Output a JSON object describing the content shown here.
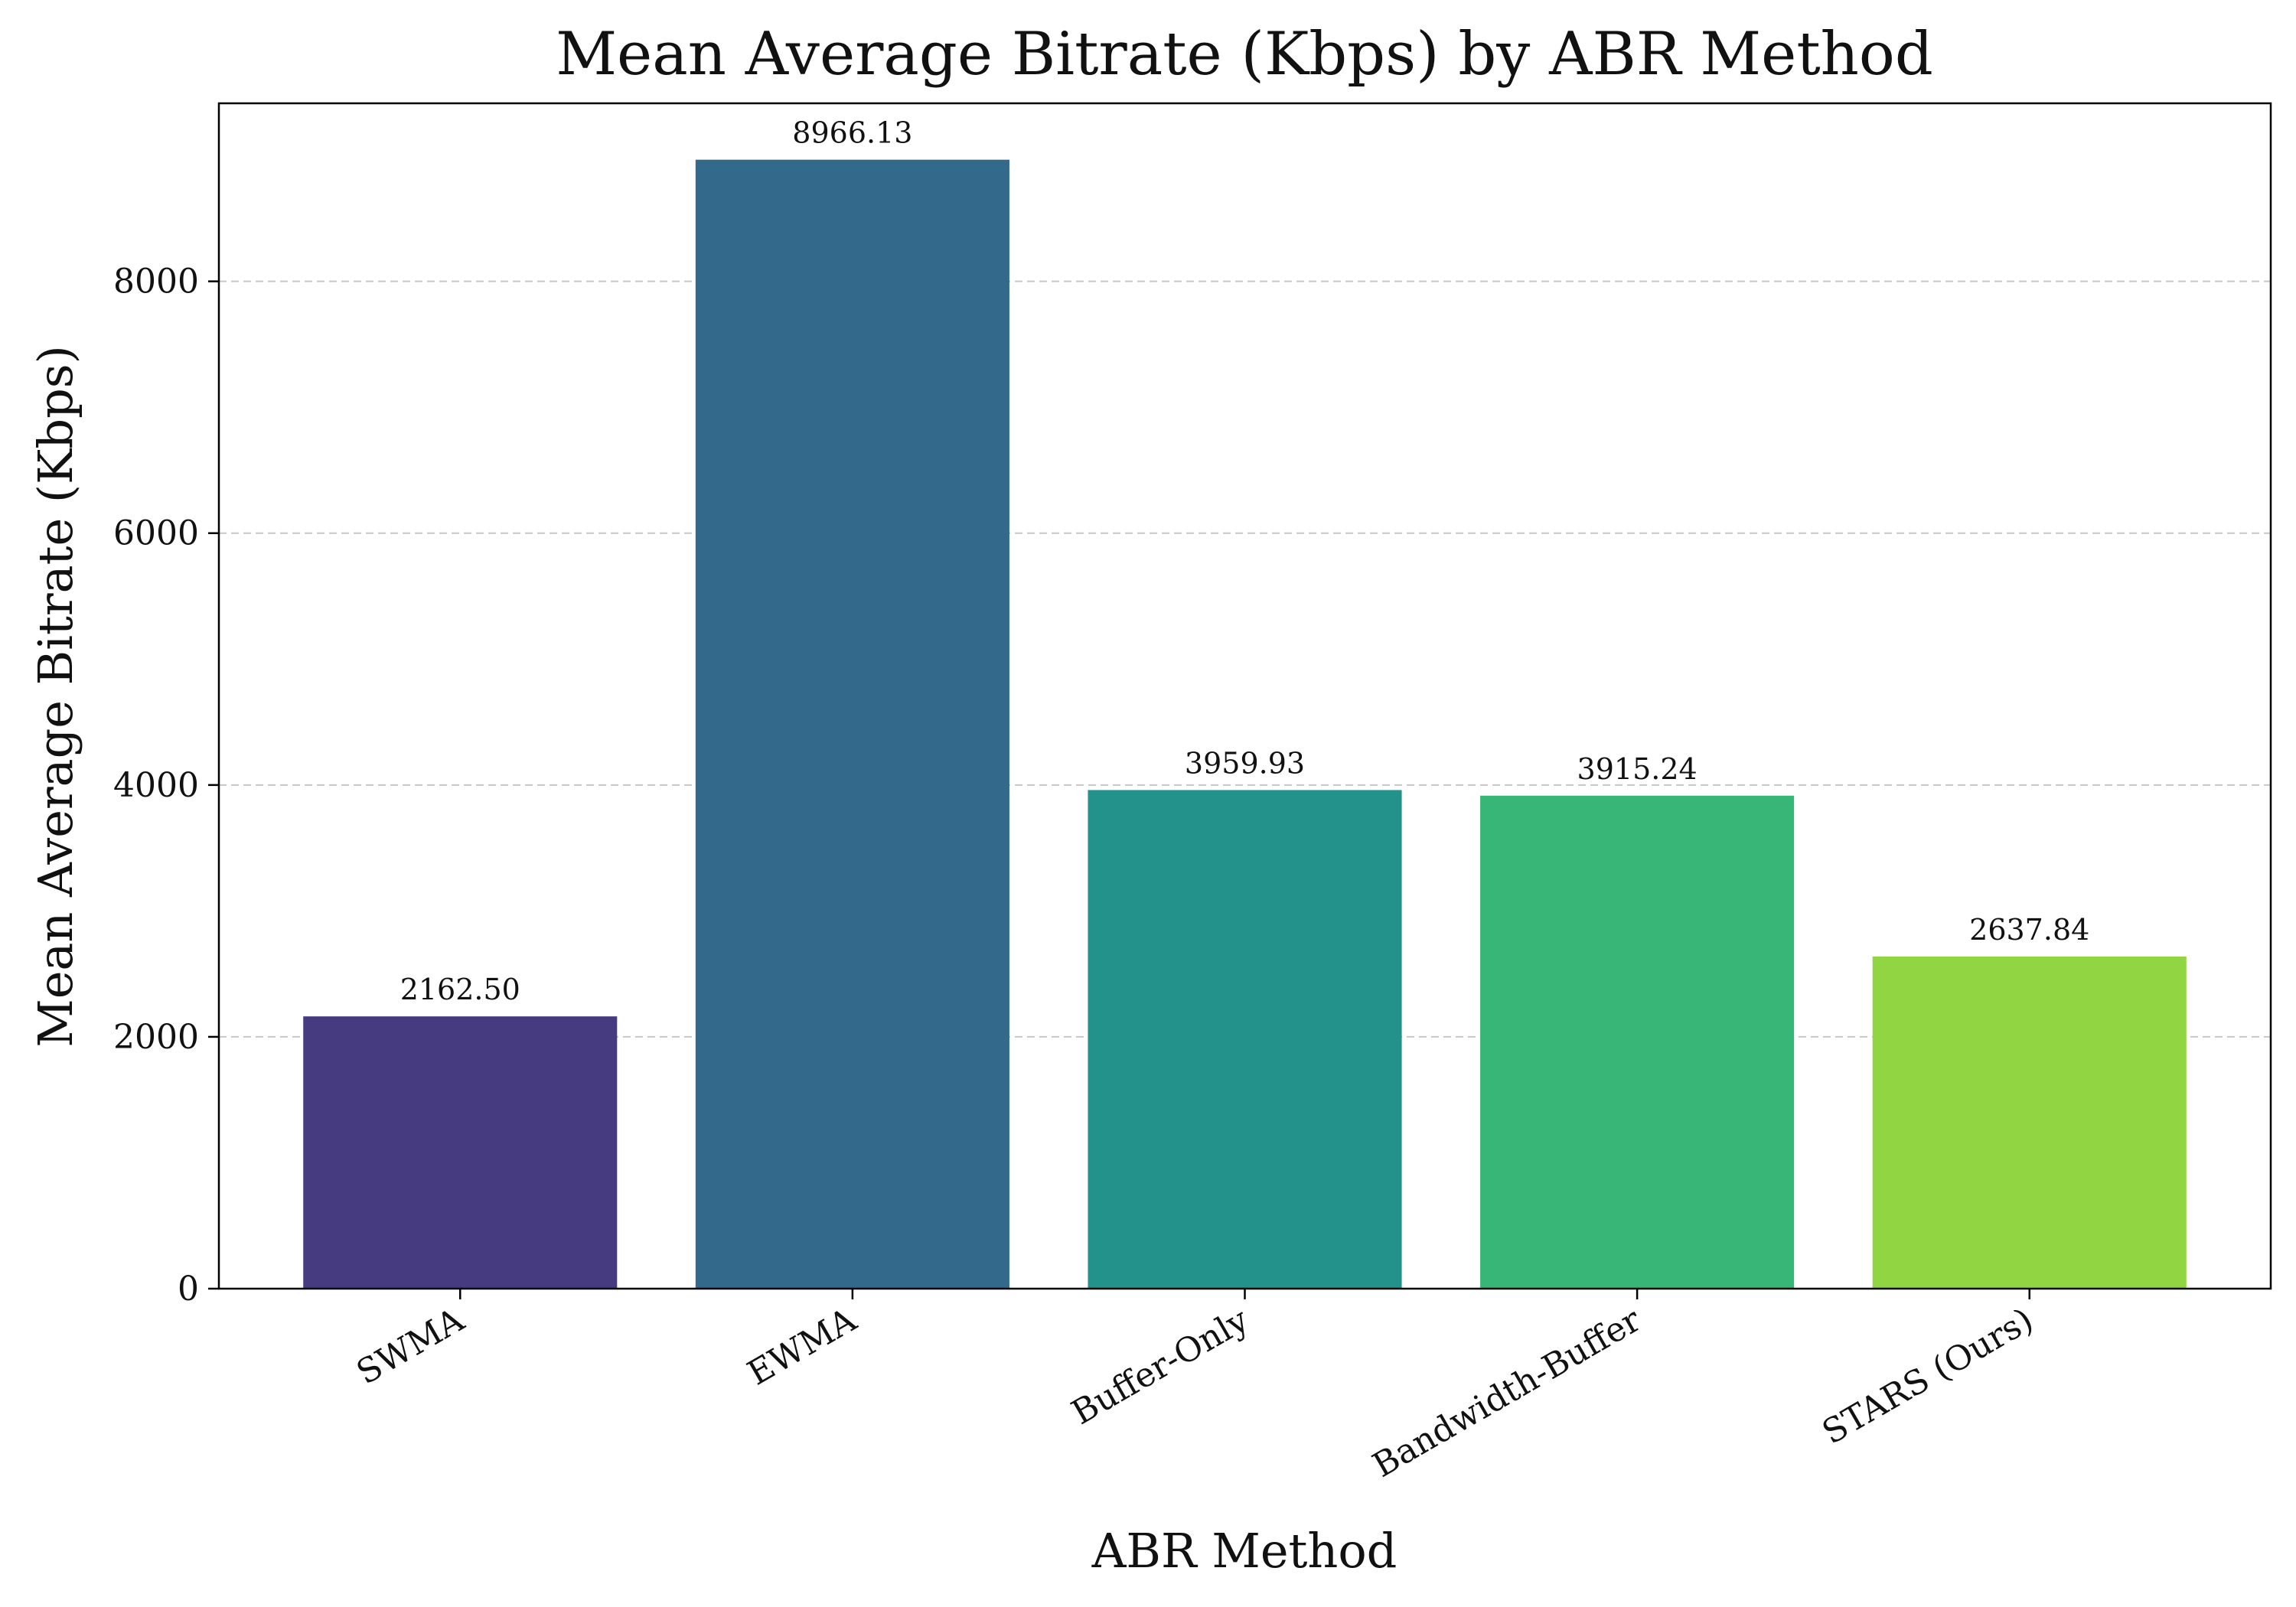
{
  "chart_data": {
    "type": "bar",
    "title": "Mean Average Bitrate (Kbps) by ABR Method",
    "xlabel": "ABR Method",
    "ylabel": "Mean Average Bitrate (Kbps)",
    "categories": [
      "SWMA",
      "EWMA",
      "Buffer-Only",
      "Bandwidth-Buffer",
      "STARS (Ours)"
    ],
    "values": [
      2162.5,
      8966.13,
      3959.93,
      3915.24,
      2637.84
    ],
    "value_labels": [
      "2162.50",
      "8966.13",
      "3959.93",
      "3915.24",
      "2637.84"
    ],
    "colors": [
      "#463b81",
      "#336a8c",
      "#22928b",
      "#38b677",
      "#92d543"
    ],
    "ylim": [
      0,
      9414
    ],
    "yticks": [
      0,
      2000,
      4000,
      6000,
      8000
    ],
    "grid": true,
    "grid_axis": "y",
    "legend": false
  }
}
